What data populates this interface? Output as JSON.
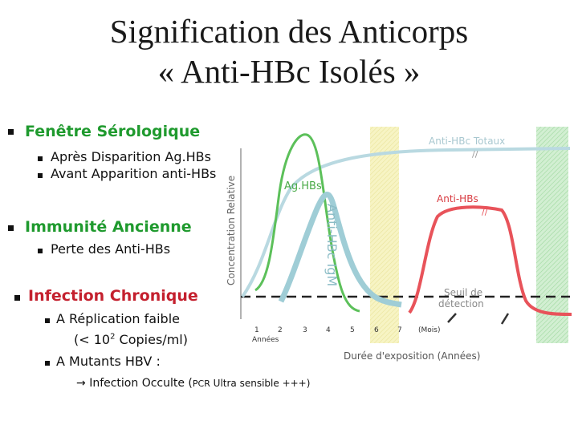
{
  "title": {
    "line1": "Signification des Anticorps",
    "line2": "« Anti-HBc Isolés »"
  },
  "left": {
    "section1": {
      "heading": "Fenêtre Sérologique",
      "items": [
        "Après Disparition Ag.HBs",
        "Avant Apparition anti-HBs"
      ]
    },
    "section2": {
      "heading": "Immunité Ancienne",
      "items": [
        "Perte des Anti-HBs"
      ]
    },
    "section3": {
      "heading": "Infection Chronique",
      "item1_a": "A Réplication faible",
      "item1_b": "(< 10",
      "item1_sup": "2",
      "item1_c": " Copies/ml)",
      "item2": "A Mutants HBV :",
      "occult_arrow": "→",
      "occult_text": "Infection Occulte (",
      "occult_pcr": "PCR",
      "occult_rest": " Ultra sensible +++)"
    }
  },
  "chart": {
    "ylabel": "Concentration Relative",
    "xlabel": "Durée d'exposition (Années)",
    "annees_label": "Années",
    "mois_label": "(Mois)",
    "threshold_label_1": "Seuil de",
    "threshold_label_2": "détection",
    "curve_labels": {
      "anti_hbc_totaux": "Anti-HBc Totaux",
      "aghbs": "Ag.HBs",
      "anti_hbs": "Anti-HBs",
      "anti_hbc_igm": "Anti-HBc IgM"
    },
    "break_mark": "//",
    "colors": {
      "green_heading": "#1f9a2e",
      "red_heading": "#c4202e",
      "anti_hbc_totaux": "#b9d9e1",
      "aghbs": "#5cc05a",
      "anti_hbc_igm": "#9fcdd6",
      "anti_hbs": "#e8535a",
      "yellow_band": "#f5f2b8",
      "green_band": "#bfe5bf"
    }
  },
  "chart_data": {
    "type": "line",
    "x_ticks": [
      "1",
      "2",
      "3",
      "4",
      "5",
      "6",
      "7"
    ],
    "ylabel": "Concentration Relative",
    "xlabel": "Durée d'exposition (Années)",
    "series": [
      {
        "name": "Anti-HBc Totaux"
      },
      {
        "name": "Ag.HBs"
      },
      {
        "name": "Anti-HBs"
      },
      {
        "name": "Anti-HBc IgM"
      }
    ],
    "threshold": "Seuil de détection"
  }
}
